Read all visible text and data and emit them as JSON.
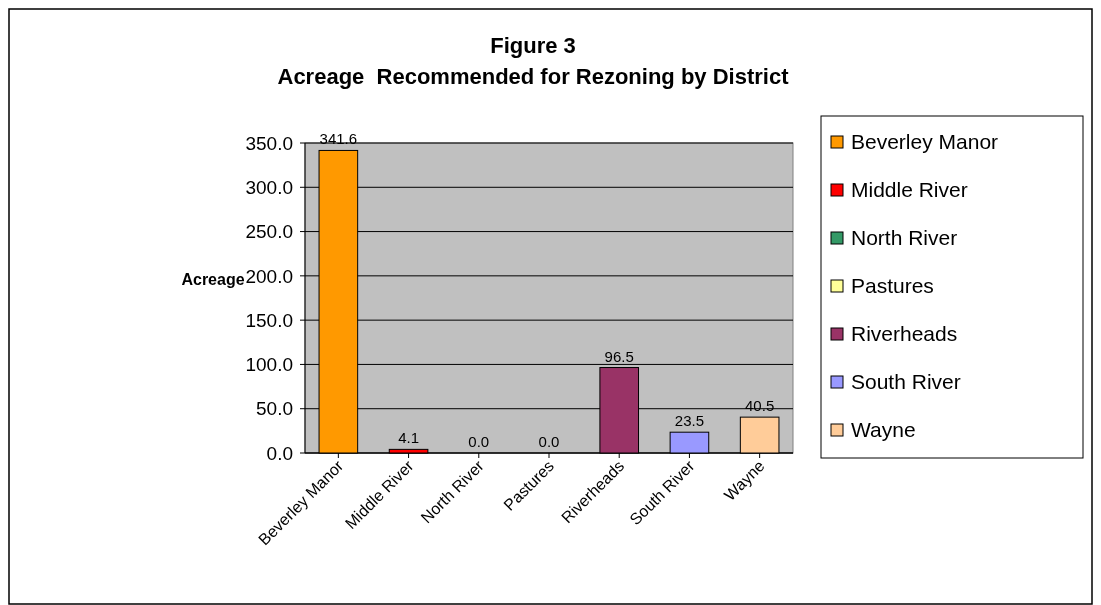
{
  "chart_data": {
    "type": "bar",
    "title": "Figure 3",
    "subtitle": "Acreage  Recommended for Rezoning by District",
    "ylabel": "Acreage",
    "categories": [
      "Beverley Manor",
      "Middle River",
      "North River",
      "Pastures",
      "Riverheads",
      "South River",
      "Wayne"
    ],
    "stacked": true,
    "series": [
      {
        "name": "Beverley Manor",
        "color": "#ff9900",
        "values": [
          341.6,
          null,
          null,
          null,
          null,
          null,
          null
        ],
        "value_labels": [
          "341.6",
          null,
          null,
          null,
          null,
          null,
          null
        ]
      },
      {
        "name": "Middle River",
        "color": "#ff0000",
        "values": [
          null,
          4.1,
          null,
          null,
          null,
          null,
          null
        ],
        "value_labels": [
          null,
          "4.1",
          null,
          null,
          null,
          null,
          null
        ]
      },
      {
        "name": "North River",
        "color": "#339966",
        "values": [
          null,
          null,
          0.0,
          null,
          null,
          null,
          null
        ],
        "value_labels": [
          null,
          null,
          "0.0",
          null,
          null,
          null,
          null
        ]
      },
      {
        "name": "Pastures",
        "color": "#ffff99",
        "values": [
          null,
          null,
          null,
          0.0,
          null,
          null,
          null
        ],
        "value_labels": [
          null,
          null,
          null,
          "0.0",
          null,
          null,
          null
        ]
      },
      {
        "name": "Riverheads",
        "color": "#993366",
        "values": [
          null,
          null,
          null,
          null,
          96.5,
          null,
          null
        ],
        "value_labels": [
          null,
          null,
          null,
          null,
          "96.5",
          null,
          null
        ]
      },
      {
        "name": "South River",
        "color": "#9999ff",
        "values": [
          null,
          null,
          null,
          null,
          null,
          23.5,
          null
        ],
        "value_labels": [
          null,
          null,
          null,
          null,
          null,
          "23.5",
          null
        ]
      },
      {
        "name": "Wayne",
        "color": "#ffcc99",
        "values": [
          null,
          null,
          null,
          null,
          null,
          null,
          40.5
        ],
        "value_labels": [
          null,
          null,
          null,
          null,
          null,
          null,
          "40.5"
        ]
      }
    ],
    "ylim": [
      0,
      350
    ],
    "yticks": [
      {
        "value": 0,
        "label": "0.0"
      },
      {
        "value": 50,
        "label": "50.0"
      },
      {
        "value": 100,
        "label": "100.0"
      },
      {
        "value": 150,
        "label": "150.0"
      },
      {
        "value": 200,
        "label": "200.0"
      },
      {
        "value": 250,
        "label": "250.0"
      },
      {
        "value": 300,
        "label": "300.0"
      },
      {
        "value": 350,
        "label": "350.0"
      }
    ],
    "grid": "y",
    "legend": "right"
  }
}
